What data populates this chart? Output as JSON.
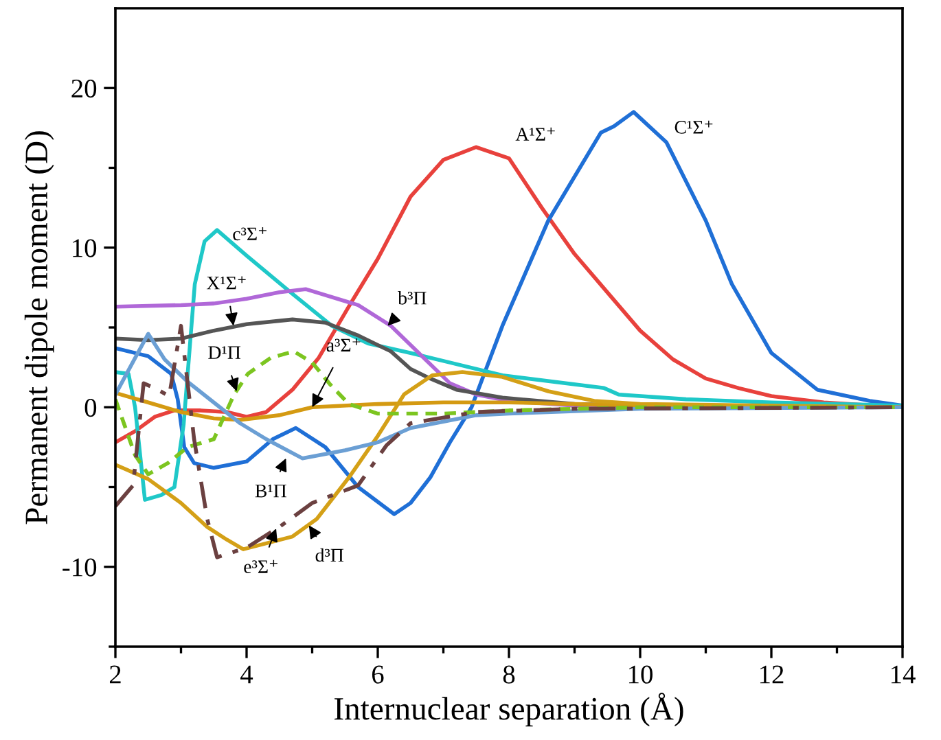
{
  "chart_data": {
    "type": "line",
    "xlabel": "Internuclear separation (Å)",
    "ylabel": "Permanent dipole moment (D)",
    "xlim": [
      2,
      14
    ],
    "ylim": [
      -15,
      25
    ],
    "xticks": [
      2,
      {
        "value": 3,
        "label": null
      },
      4,
      {
        "value": 5,
        "label": null
      },
      6,
      {
        "value": 7,
        "label": null
      },
      8,
      {
        "value": 9,
        "label": null
      },
      10,
      {
        "value": 11,
        "label": null
      },
      12,
      {
        "value": 13,
        "label": null
      },
      14
    ],
    "yticks": [
      {
        "value": -15,
        "label": null
      },
      -10,
      {
        "value": -5,
        "label": null
      },
      0,
      {
        "value": 5,
        "label": null
      },
      10,
      {
        "value": 15,
        "label": null
      },
      20
    ],
    "grid": false,
    "legend": false,
    "marker": "none",
    "series": [
      {
        "color": "#e8413c",
        "line_style": "solid",
        "x": [
          2,
          2.3,
          2.6,
          2.9,
          3.3,
          3.7,
          4.0,
          4.3,
          4.7,
          5.1,
          5.6,
          6.0,
          6.5,
          7.0,
          7.5,
          8.0,
          8.5,
          9.0,
          9.5,
          10.0,
          10.5,
          11.0,
          11.5,
          12.0,
          12.8,
          14
        ],
        "values": [
          -2.2,
          -1.5,
          -0.6,
          -0.2,
          -0.2,
          -0.3,
          -0.6,
          -0.3,
          1.1,
          3.1,
          6.6,
          9.3,
          13.2,
          15.5,
          16.3,
          15.6,
          12.5,
          9.6,
          7.2,
          4.8,
          3.0,
          1.8,
          1.2,
          0.7,
          0.3,
          0
        ]
      },
      {
        "color": "#1f6fd6",
        "line_style": "solid",
        "x": [
          2,
          2.5,
          2.85,
          2.95,
          3.05,
          3.2,
          3.5,
          4.0,
          4.4,
          4.75,
          5.2,
          5.7,
          6.25,
          6.5,
          6.8,
          7.1,
          7.43,
          7.9,
          8.6,
          9.4,
          9.6,
          9.9,
          10.4,
          11.0,
          11.4,
          12.0,
          12.7,
          13.5,
          14
        ],
        "values": [
          3.7,
          3.2,
          2.1,
          0.5,
          -2.5,
          -3.5,
          -3.8,
          -3.4,
          -2.0,
          -1.3,
          -2.5,
          -5.0,
          -6.7,
          -6.0,
          -4.4,
          -2.2,
          0,
          5.1,
          11.7,
          17.2,
          17.6,
          18.5,
          16.6,
          11.7,
          7.7,
          3.4,
          1.1,
          0.4,
          0.1
        ]
      },
      {
        "color": "#1fc8c8",
        "line_style": "solid",
        "x": [
          2,
          2.2,
          2.3,
          2.45,
          2.7,
          2.9,
          3.04,
          3.21,
          3.36,
          3.55,
          4.0,
          4.7,
          5.3,
          5.85,
          6.5,
          7.1,
          7.9,
          9.45,
          9.67,
          10.7,
          12.0,
          14
        ],
        "values": [
          2.2,
          2.1,
          0,
          -5.8,
          -5.5,
          -5.0,
          -1.1,
          7.7,
          10.4,
          11.1,
          9.5,
          7.1,
          5.1,
          4.0,
          3.4,
          2.8,
          2.0,
          1.2,
          0.8,
          0.5,
          0.3,
          0.1
        ]
      },
      {
        "color": "#b068d8",
        "line_style": "solid",
        "x": [
          2,
          3,
          3.5,
          4,
          4.5,
          4.9,
          5.7,
          6.2,
          6.7,
          7.1,
          7.5,
          8,
          9,
          10,
          14
        ],
        "values": [
          6.3,
          6.4,
          6.5,
          6.8,
          7.2,
          7.4,
          6.4,
          5.1,
          3.1,
          1.5,
          0.8,
          0.4,
          0.1,
          0,
          0
        ]
      },
      {
        "color": "#555555",
        "line_style": "solid",
        "x": [
          2,
          2.5,
          3,
          3.5,
          4,
          4.7,
          5.2,
          5.7,
          6.2,
          6.5,
          6.8,
          7.2,
          7.9,
          9,
          10,
          14
        ],
        "values": [
          4.3,
          4.2,
          4.3,
          4.8,
          5.2,
          5.5,
          5.3,
          4.5,
          3.5,
          2.4,
          1.8,
          1.1,
          0.6,
          0.2,
          0.1,
          0
        ]
      },
      {
        "color": "#d49a12",
        "line_style": "solid",
        "x": [
          2,
          2.5,
          3,
          3.5,
          3.9,
          4.5,
          5.0,
          6.0,
          7.0,
          8.0,
          9.0,
          10.0,
          14
        ],
        "values": [
          0.9,
          0.3,
          -0.3,
          -0.7,
          -0.8,
          -0.5,
          0,
          0.2,
          0.3,
          0.3,
          0.2,
          0.1,
          0
        ]
      },
      {
        "color": "#d4a017",
        "line_style": "solid",
        "x": [
          2,
          2.5,
          3,
          3.4,
          3.7,
          3.95,
          4.7,
          5.07,
          5.56,
          6.0,
          6.4,
          6.83,
          7.29,
          7.9,
          8.6,
          9.3,
          10,
          14
        ],
        "values": [
          -3.6,
          -4.5,
          -6.0,
          -7.5,
          -8.3,
          -8.9,
          -8.1,
          -7.0,
          -4.4,
          -1.8,
          0.8,
          2.0,
          2.2,
          1.9,
          1.0,
          0.4,
          0.2,
          0
        ]
      },
      {
        "color": "#6b9fd4",
        "line_style": "solid",
        "x": [
          2,
          2.5,
          2.75,
          3.1,
          3.5,
          3.9,
          4.3,
          4.85,
          5.5,
          6.0,
          6.5,
          7.0,
          7.5,
          8.0,
          10,
          14
        ],
        "values": [
          0.8,
          4.6,
          3.0,
          1.6,
          0.3,
          -1.0,
          -2.0,
          -3.2,
          -2.7,
          -2.2,
          -1.3,
          -0.9,
          -0.5,
          -0.4,
          -0.1,
          0
        ]
      },
      {
        "color": "#7cc520",
        "line_style": "dashed",
        "x": [
          2,
          2.3,
          2.5,
          2.8,
          3.1,
          3.5,
          3.81,
          4.02,
          4.37,
          4.72,
          5.0,
          5.28,
          5.56,
          6.0,
          7.0,
          8.0,
          10,
          14
        ],
        "values": [
          0.5,
          -3.0,
          -4.2,
          -3.5,
          -2.5,
          -2.0,
          0.8,
          2.1,
          3.1,
          3.5,
          2.8,
          1.4,
          0.2,
          -0.4,
          -0.4,
          -0.2,
          0,
          0
        ]
      },
      {
        "color": "#6b4040",
        "line_style": "dashdot",
        "x": [
          2,
          2.27,
          2.43,
          2.6,
          2.82,
          3.0,
          3.2,
          3.4,
          3.55,
          4.0,
          4.5,
          5.0,
          5.7,
          6.13,
          6.5,
          7.5,
          9,
          14
        ],
        "values": [
          -6.2,
          -4.9,
          1.5,
          1.2,
          0.7,
          5.1,
          -2.0,
          -7.0,
          -9.4,
          -8.8,
          -7.5,
          -6.0,
          -4.9,
          -2.4,
          -1.0,
          -0.3,
          -0.1,
          0
        ]
      }
    ],
    "annotations": [
      {
        "text": "c³Σ⁺",
        "x": 3.55,
        "y": 11.1
      },
      {
        "text": "X¹Σ⁺",
        "x": 3.8,
        "y": 5.1
      },
      "A¹Σ⁺",
      "C¹Σ⁺",
      {
        "text": "b³Π",
        "x": 6.15,
        "y": 5.1
      },
      {
        "text": "D¹Π",
        "x": 3.85,
        "y": 1.0
      },
      {
        "text": "a³Σ⁺",
        "x": 5.0,
        "y": 0.0
      },
      {
        "text": "B¹Π",
        "x": 4.6,
        "y": -3.2
      },
      {
        "text": "e³Σ⁺",
        "x": 4.45,
        "y": -7.6
      },
      {
        "text": "d³Π",
        "x": 4.95,
        "y": -7.4
      }
    ]
  }
}
